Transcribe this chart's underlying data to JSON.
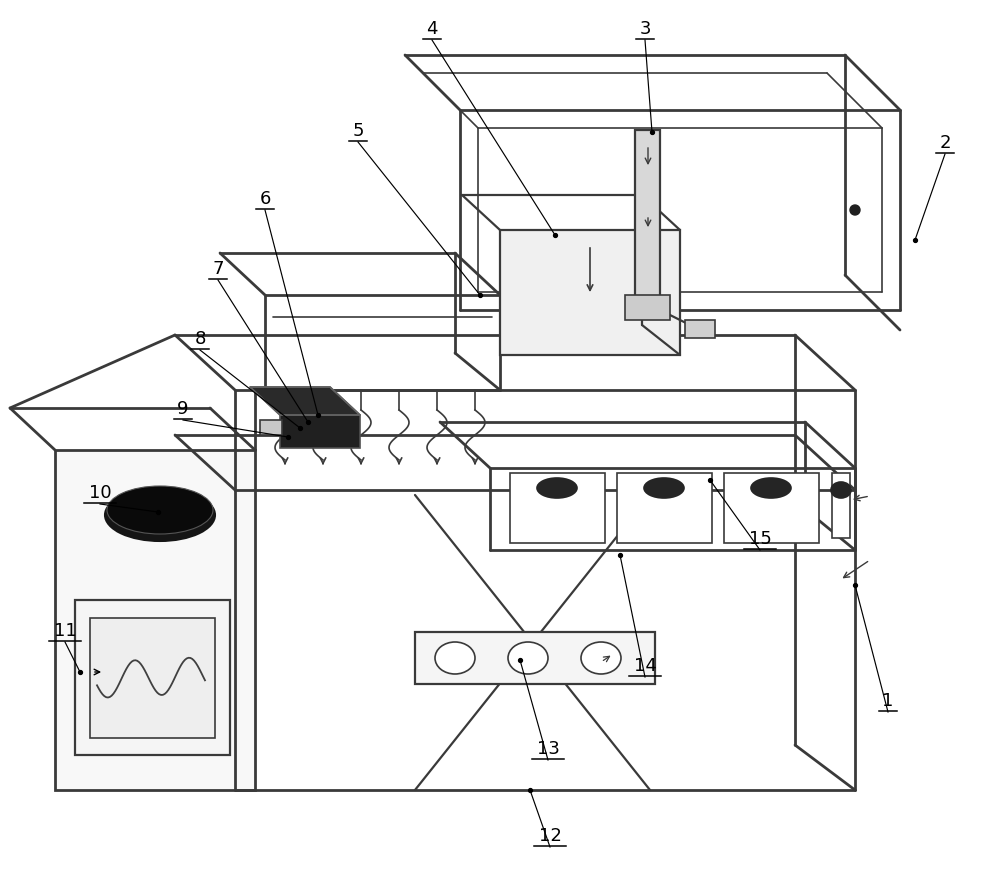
{
  "bg_color": "#ffffff",
  "lc": "#3a3a3a",
  "lw_thick": 2.0,
  "lw_thin": 1.2,
  "lw_med": 1.6
}
